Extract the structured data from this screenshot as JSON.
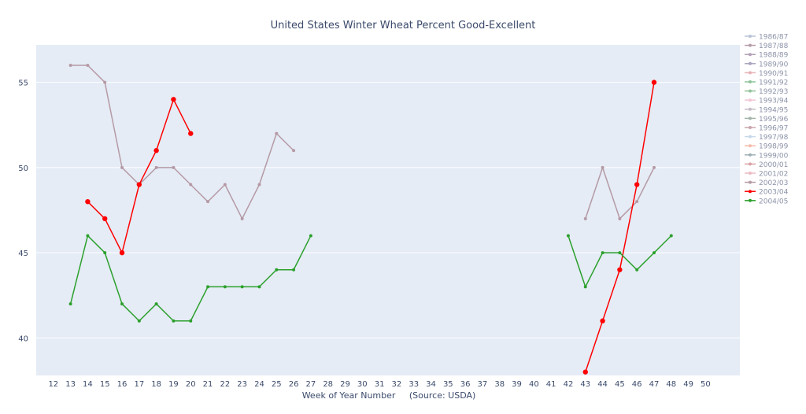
{
  "chart_data": {
    "type": "line",
    "title": "United States Winter Wheat Percent Good-Excellent",
    "xlabel": "Week of Year Number     (Source: USDA)",
    "ylabel": "",
    "xlim": [
      11,
      52
    ],
    "ylim": [
      37.8,
      57.2
    ],
    "x_ticks": [
      12,
      13,
      14,
      15,
      16,
      17,
      18,
      19,
      20,
      21,
      22,
      23,
      24,
      25,
      26,
      27,
      28,
      29,
      30,
      31,
      32,
      33,
      34,
      35,
      36,
      37,
      38,
      39,
      40,
      41,
      42,
      43,
      44,
      45,
      46,
      47,
      48,
      49,
      50
    ],
    "y_ticks": [
      40,
      45,
      50,
      55
    ],
    "grid": true,
    "legend_position": "right",
    "series": [
      {
        "name": "1986/87",
        "color": "#b8c3d6",
        "points": []
      },
      {
        "name": "1987/88",
        "color": "#b59aa8",
        "points": []
      },
      {
        "name": "1988/89",
        "color": "#b3a0b8",
        "points": []
      },
      {
        "name": "1989/90",
        "color": "#a9a3bf",
        "points": []
      },
      {
        "name": "1990/91",
        "color": "#e8b0b6",
        "points": []
      },
      {
        "name": "1991/92",
        "color": "#8fc49a",
        "points": []
      },
      {
        "name": "1992/93",
        "color": "#93c49a",
        "points": []
      },
      {
        "name": "1993/94",
        "color": "#f3c7d3",
        "points": []
      },
      {
        "name": "1994/95",
        "color": "#c3bcc6",
        "points": []
      },
      {
        "name": "1995/96",
        "color": "#a3b4a9",
        "points": []
      },
      {
        "name": "1996/97",
        "color": "#c8a4ab",
        "points": []
      },
      {
        "name": "1997/98",
        "color": "#c7d8ea",
        "points": []
      },
      {
        "name": "1998/99",
        "color": "#f3bcaa",
        "points": []
      },
      {
        "name": "1999/00",
        "color": "#9fb0b6",
        "points": []
      },
      {
        "name": "2000/01",
        "color": "#d8a2a6",
        "points": []
      },
      {
        "name": "2001/02",
        "color": "#ecbac4",
        "points": []
      },
      {
        "name": "2002/03",
        "color": "#b59aa5",
        "points": [
          [
            13,
            56
          ],
          [
            14,
            56
          ],
          [
            15,
            55
          ],
          [
            16,
            50
          ],
          [
            17,
            49
          ],
          [
            18,
            50
          ],
          [
            19,
            50
          ],
          [
            20,
            49
          ],
          [
            21,
            48
          ],
          [
            22,
            49
          ],
          [
            23,
            47
          ],
          [
            24,
            49
          ],
          [
            25,
            52
          ],
          [
            26,
            51
          ],
          null,
          [
            43,
            47
          ],
          [
            44,
            50
          ],
          [
            45,
            47
          ],
          [
            46,
            48
          ],
          [
            47,
            50
          ]
        ]
      },
      {
        "name": "2003/04",
        "color": "#ff0000",
        "points": [
          [
            14,
            48
          ],
          [
            15,
            47
          ],
          [
            16,
            45
          ],
          [
            17,
            49
          ],
          [
            18,
            51
          ],
          [
            19,
            54
          ],
          [
            20,
            52
          ],
          null,
          [
            43,
            38
          ],
          [
            44,
            41
          ],
          [
            45,
            44
          ],
          [
            46,
            49
          ],
          [
            47,
            55
          ]
        ]
      },
      {
        "name": "2004/05",
        "color": "#2ca02c",
        "points": [
          [
            13,
            42
          ],
          [
            14,
            46
          ],
          [
            15,
            45
          ],
          [
            16,
            42
          ],
          [
            17,
            41
          ],
          [
            18,
            42
          ],
          [
            19,
            41
          ],
          [
            20,
            41
          ],
          [
            21,
            43
          ],
          [
            22,
            43
          ],
          [
            23,
            43
          ],
          [
            24,
            43
          ],
          [
            25,
            44
          ],
          [
            26,
            44
          ],
          [
            27,
            46
          ],
          null,
          [
            42,
            46
          ],
          [
            43,
            43
          ],
          [
            44,
            45
          ],
          [
            45,
            45
          ],
          [
            46,
            44
          ],
          [
            47,
            45
          ],
          [
            48,
            46
          ]
        ]
      }
    ]
  }
}
